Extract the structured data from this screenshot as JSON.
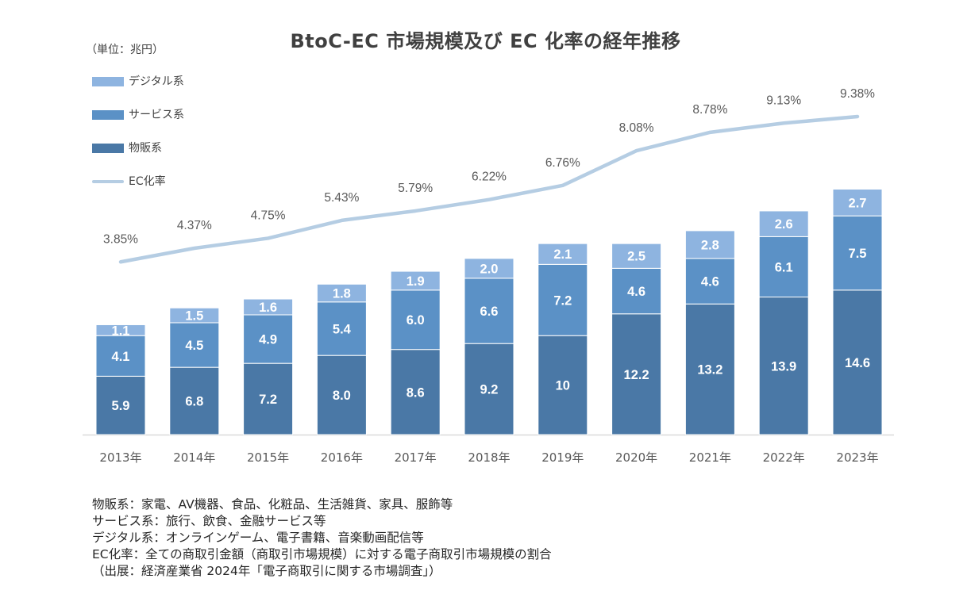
{
  "chart_data": {
    "type": "bar",
    "title": "BtoC-EC 市場規模及び EC 化率の経年推移",
    "unit_label": "（単位：兆円）",
    "categories": [
      "2013年",
      "2014年",
      "2015年",
      "2016年",
      "2017年",
      "2018年",
      "2019年",
      "2020年",
      "2021年",
      "2022年",
      "2023年"
    ],
    "stacked": true,
    "series": [
      {
        "name": "物販系",
        "color": "#4a78a6",
        "values": [
          "5.9",
          "6.8",
          "7.2",
          "8.0",
          "8.6",
          "9.2",
          "10",
          "12.2",
          "13.2",
          "13.9",
          "14.6"
        ]
      },
      {
        "name": "サービス系",
        "color": "#5b91c6",
        "values": [
          "4.1",
          "4.5",
          "4.9",
          "5.4",
          "6.0",
          "6.6",
          "7.2",
          "4.6",
          "4.6",
          "6.1",
          "7.5"
        ]
      },
      {
        "name": "デジタル系",
        "color": "#8eb4e0",
        "values": [
          "1.1",
          "1.5",
          "1.6",
          "1.8",
          "1.9",
          "2.0",
          "2.1",
          "2.5",
          "2.8",
          "2.6",
          "2.7"
        ]
      }
    ],
    "line_series": {
      "name": "EC化率",
      "color": "#b5cde3",
      "labels": [
        "3.85%",
        "4.37%",
        "4.75%",
        "5.43%",
        "5.79%",
        "6.22%",
        "6.76%",
        "8.08%",
        "8.78%",
        "9.13%",
        "9.38%"
      ]
    },
    "legend": {
      "placement": "top-left",
      "items": [
        {
          "label": "デジタル系",
          "color": "#8eb4e0",
          "kind": "bar"
        },
        {
          "label": "サービス系",
          "color": "#5b91c6",
          "kind": "bar"
        },
        {
          "label": "物販系",
          "color": "#4a78a6",
          "kind": "bar"
        },
        {
          "label": "EC化率",
          "color": "#b5cde3",
          "kind": "line"
        }
      ]
    },
    "ylim": [
      0,
      28
    ],
    "line_range": [
      2.5,
      9.5
    ],
    "grid": false
  },
  "notes": [
    "物販系：家電、AV機器、食品、化粧品、生活雑貨、家具、服飾等",
    "サービス系：旅行、飲食、金融サービス等",
    "デジタル系：オンラインゲーム、電子書籍、音楽動画配信等",
    "EC化率：全ての商取引金額（商取引市場規模）に対する電子商取引市場規模の割合",
    "（出展：経済産業省 2024年「電子商取引に関する市場調査」）"
  ]
}
